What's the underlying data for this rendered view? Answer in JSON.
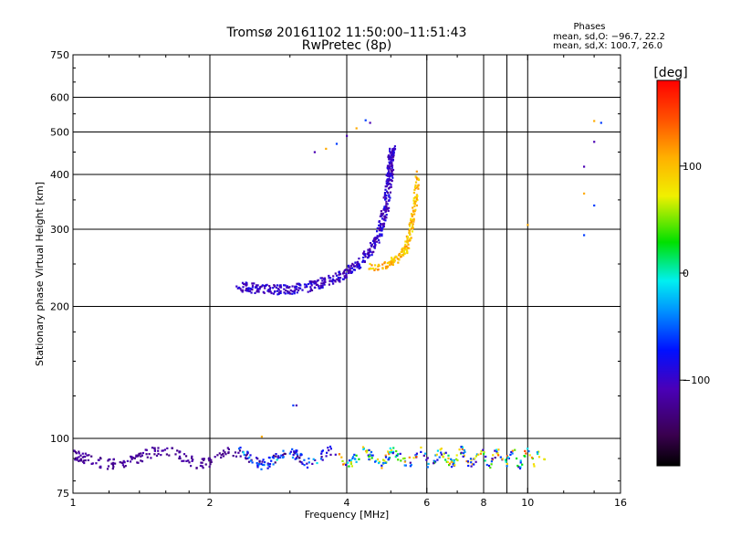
{
  "chart_data": {
    "type": "scatter",
    "title": "Tromsø 20161102 11:50:00–11:51:43",
    "subtitle": "RwPretec (8p)",
    "xlabel": "Frequency [MHz]",
    "ylabel": "Stationary phase Virtual Height [km]",
    "x_scale": "log",
    "y_scale": "log",
    "xlim": [
      1,
      16
    ],
    "ylim": [
      75,
      750
    ],
    "x_ticks": [
      1,
      2,
      4,
      6,
      8,
      10,
      16
    ],
    "x_grid": [
      2,
      4,
      6,
      8,
      9,
      10
    ],
    "y_ticks": [
      75,
      100,
      200,
      300,
      400,
      500,
      600,
      750
    ],
    "y_grid": [
      100,
      200,
      300,
      400,
      500,
      600
    ],
    "grid": true,
    "phase_info": {
      "title": "Phases",
      "line1": "mean, sd,O: −96.7, 22.2",
      "line2": "mean, sd,X: 100.7, 26.0"
    },
    "colorbar": {
      "label": "[deg]",
      "range": [
        -180,
        180
      ],
      "ticks": [
        100,
        0,
        -100
      ],
      "tick_labels": [
        "100",
        "0",
        "−100"
      ]
    },
    "series": [
      {
        "trace": "E-region echoes",
        "x_range": [
          1.0,
          11.0
        ],
        "height_range": [
          86,
          96
        ],
        "phase_range_deg": [
          -150,
          150
        ]
      },
      {
        "trace": "F-region O-mode trace",
        "points": [
          [
            2.3,
            222
          ],
          [
            2.5,
            220
          ],
          [
            2.8,
            218
          ],
          [
            3.0,
            219
          ],
          [
            3.3,
            222
          ],
          [
            3.6,
            228
          ],
          [
            3.9,
            236
          ],
          [
            4.2,
            248
          ],
          [
            4.5,
            266
          ],
          [
            4.7,
            290
          ],
          [
            4.85,
            330
          ],
          [
            4.95,
            380
          ],
          [
            5.0,
            430
          ],
          [
            5.05,
            455
          ]
        ],
        "phase_deg": -100
      },
      {
        "trace": "F-region X-mode trace",
        "points": [
          [
            4.5,
            245
          ],
          [
            4.9,
            250
          ],
          [
            5.2,
            258
          ],
          [
            5.4,
            270
          ],
          [
            5.5,
            290
          ],
          [
            5.6,
            320
          ],
          [
            5.68,
            360
          ],
          [
            5.72,
            400
          ]
        ],
        "phase_deg": 100
      },
      {
        "trace": "Multi-hop / sparse echoes",
        "points": [
          [
            3.4,
            450
          ],
          [
            3.6,
            458
          ],
          [
            3.8,
            470
          ],
          [
            4.0,
            490
          ],
          [
            4.2,
            510
          ],
          [
            4.4,
            532
          ],
          [
            4.5,
            525
          ],
          [
            2.6,
            101
          ],
          [
            3.05,
            119
          ],
          [
            3.1,
            119
          ],
          [
            10.0,
            307
          ],
          [
            13.3,
            291
          ],
          [
            13.3,
            417
          ],
          [
            13.3,
            362
          ],
          [
            14.0,
            340
          ],
          [
            14.0,
            475
          ],
          [
            14.0,
            530
          ],
          [
            14.5,
            525
          ]
        ],
        "phase_range_deg": [
          -120,
          120
        ]
      }
    ]
  }
}
